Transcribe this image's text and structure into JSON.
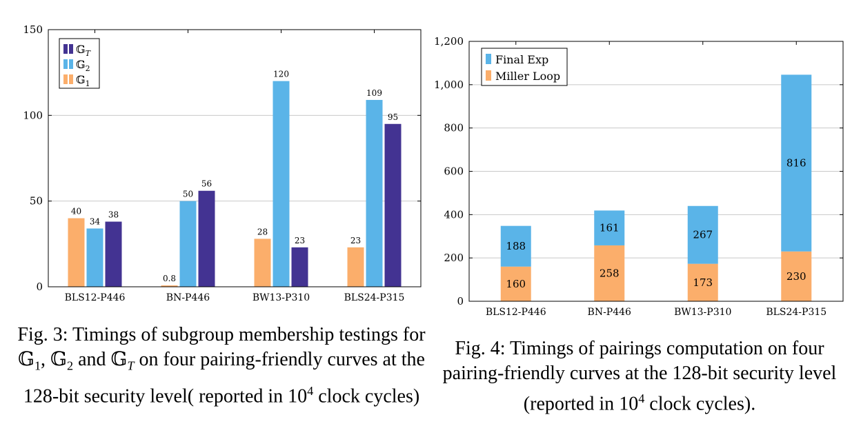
{
  "chart_data": [
    {
      "type": "bar",
      "categories": [
        "BLS12-P446",
        "BN-P446",
        "BW13-P310",
        "BLS24-P315"
      ],
      "series": [
        {
          "name": "𝔾₁",
          "values": [
            40,
            0.8,
            28,
            23
          ],
          "labels": [
            "40",
            "0.8",
            "28",
            "23"
          ],
          "color": "#fbae6b"
        },
        {
          "name": "𝔾₂",
          "values": [
            34,
            50,
            120,
            109
          ],
          "labels": [
            "34",
            "50",
            "120",
            "109"
          ],
          "color": "#5ab4e8"
        },
        {
          "name": "𝔾T",
          "values": [
            38,
            56,
            23,
            95
          ],
          "labels": [
            "38",
            "56",
            "23",
            "95"
          ],
          "color": "#433392"
        }
      ],
      "missing_bars": [
        [
          1,
          0,
          "skip"
        ],
        [
          2,
          0,
          "skip"
        ]
      ],
      "ylim": [
        0,
        150
      ],
      "yticks": [
        0,
        50,
        100,
        150
      ],
      "ytick_labels": [
        "0",
        "50",
        "100",
        "150"
      ],
      "legend_position": "top-left",
      "legend": [
        "𝔾T",
        "𝔾₂",
        "𝔾₁"
      ],
      "grid": "horizontal",
      "caption": "Fig. 3: Timings of subgroup membership testings for 𝔾₁, 𝔾₂ and 𝔾T on four pairing-friendly curves at the 128-bit security level( reported in 10⁴ clock cycles)"
    },
    {
      "type": "bar",
      "stacked": true,
      "categories": [
        "BLS12-P446",
        "BN-P446",
        "BW13-P310",
        "BLS24-P315"
      ],
      "series": [
        {
          "name": "Miller Loop",
          "values": [
            160,
            258,
            173,
            230
          ],
          "labels": [
            "160",
            "258",
            "173",
            "230"
          ],
          "color": "#fbae6b"
        },
        {
          "name": "Final Exp",
          "values": [
            188,
            161,
            267,
            816
          ],
          "labels": [
            "188",
            "161",
            "267",
            "816"
          ],
          "color": "#5ab4e8"
        }
      ],
      "ylim": [
        0,
        1200
      ],
      "yticks": [
        0,
        200,
        400,
        600,
        800,
        1000,
        1200
      ],
      "ytick_labels": [
        "0",
        "200",
        "400",
        "600",
        "800",
        "1,000",
        "1,200"
      ],
      "legend_position": "top-left",
      "legend": [
        "Final Exp",
        "Miller Loop"
      ],
      "grid": "horizontal",
      "caption": "Fig. 4: Timings of pairings computation on four pairing-friendly curves at the 128-bit security level (reported in 10⁴ clock cycles)."
    }
  ],
  "captions": {
    "fig3": {
      "part1": "Fig. 3: Timings of subgroup membership testings for ",
      "g1": "𝔾",
      "g1_sub": "1",
      "sep1": ", ",
      "g2": "𝔾",
      "g2_sub": "2",
      "and": " and ",
      "gt": "𝔾",
      "gt_sub": "T",
      "part2": " on four pairing-friendly curves at the 128-bit security level( reported in ",
      "base": "10",
      "exp": "4",
      "part3": " clock cycles)"
    },
    "fig4": {
      "part1": "Fig. 4: Timings of pairings computation on four pairing-friendly curves at the 128-bit security level (reported in ",
      "base": "10",
      "exp": "4",
      "part2": " clock cycles)."
    }
  }
}
